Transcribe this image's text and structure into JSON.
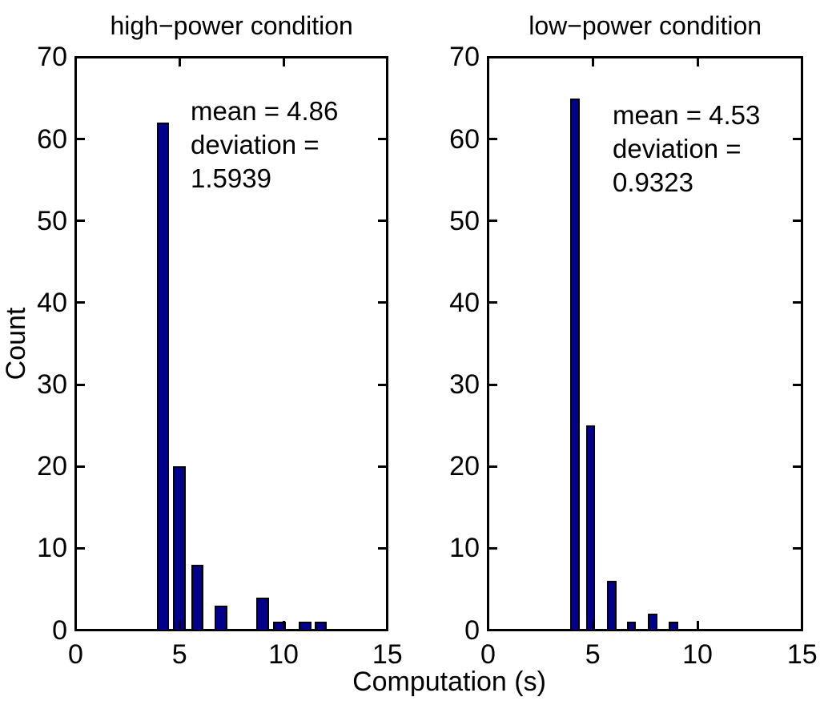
{
  "figure": {
    "background": "#ffffff",
    "text_color": "#000000",
    "x_axis_label": "Computation (s)",
    "y_axis_label": "Count"
  },
  "chart_data": [
    {
      "type": "bar",
      "subtype": "histogram",
      "title": "high−power condition",
      "annotation_lines": [
        "mean = 4.86",
        "deviation =",
        "1.5939"
      ],
      "mean": 4.86,
      "deviation": 1.5939,
      "bin_centers": [
        4.2,
        5.0,
        5.85,
        7.0,
        9.0,
        9.8,
        11.05,
        11.8
      ],
      "counts": [
        62,
        20,
        8,
        3,
        4,
        1,
        1,
        1
      ],
      "xlim": [
        0,
        15
      ],
      "ylim": [
        0,
        70
      ],
      "x_ticks": [
        0,
        5,
        10,
        15
      ],
      "y_ticks": [
        0,
        10,
        20,
        30,
        40,
        50,
        60,
        70
      ],
      "grid": false,
      "legend": "none",
      "bar_width_units": 0.6,
      "bar_fill": "#00008c",
      "bar_edge": "#000000"
    },
    {
      "type": "bar",
      "subtype": "histogram",
      "title": "low−power condition",
      "annotation_lines": [
        "mean = 4.53",
        "deviation =",
        "0.9323"
      ],
      "mean": 4.53,
      "deviation": 0.9323,
      "bin_centers": [
        4.15,
        4.9,
        5.9,
        6.85,
        7.85,
        8.85
      ],
      "counts": [
        65,
        25,
        6,
        1,
        2,
        1
      ],
      "xlim": [
        0,
        15
      ],
      "ylim": [
        0,
        70
      ],
      "x_ticks": [
        0,
        5,
        10,
        15
      ],
      "y_ticks": [
        0,
        10,
        20,
        30,
        40,
        50,
        60,
        70
      ],
      "grid": false,
      "legend": "none",
      "bar_width_units": 0.44,
      "bar_fill": "#00008c",
      "bar_edge": "#000000"
    }
  ]
}
